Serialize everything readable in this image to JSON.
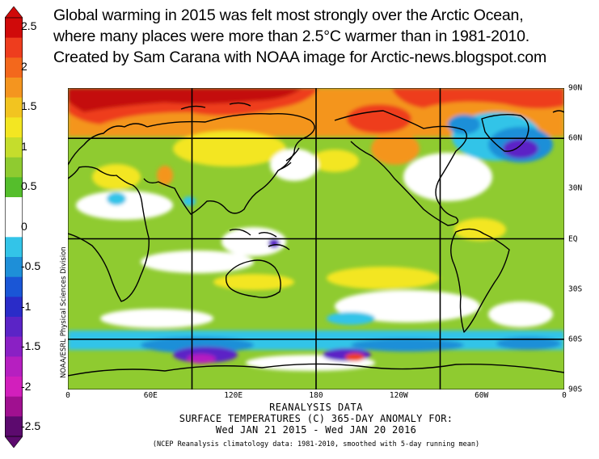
{
  "title_lines": [
    "Global warming in 2015 was felt most strongly over the Arctic Ocean,",
    "where many places were more than 2.5°C warmer than in 1981-2010.",
    "Created by Sam Carana with NOAA image for Arctic-news.blogspot.com"
  ],
  "colorbar": {
    "labels": [
      "2.5",
      "2",
      "1.5",
      "1",
      "0.5",
      "0",
      "-0.5",
      "-1",
      "-1.5",
      "-2",
      "-2.5"
    ],
    "colors": [
      "#d00a0a",
      "#ee3d1e",
      "#f3681c",
      "#f4951f",
      "#f2c420",
      "#f3e622",
      "#c5dd2c",
      "#8fcb30",
      "#55be2c",
      "#ffffff",
      "#ffffff",
      "#33c4e8",
      "#1e8fd8",
      "#1a56d6",
      "#2a2cc8",
      "#5b24c6",
      "#8a20c4",
      "#b61fc0",
      "#d21fbc",
      "#a01090",
      "#5c0a6e"
    ]
  },
  "axes": {
    "lon_labels": [
      "0",
      "60E",
      "120E",
      "180",
      "120W",
      "60W",
      "0"
    ],
    "lat_labels": [
      "90N",
      "60N",
      "30N",
      "EQ",
      "30S",
      "60S",
      "90S"
    ]
  },
  "map_colors": {
    "green": "#8fcb30",
    "light_green": "#c5dd2c",
    "yellow": "#f3e622",
    "orange": "#f4951f",
    "red": "#ee3d1e",
    "dark_red": "#c40a0a",
    "white": "#ffffff",
    "cyan": "#33c4e8",
    "blue": "#1e8fd8",
    "purple": "#5b24c6",
    "magenta": "#b61fc0",
    "coast": "#000000"
  },
  "credit": "NOAA/ESRL Physical Sciences Division",
  "caption": {
    "line1": "REANALYSIS DATA",
    "line2": "SURFACE TEMPERATURES (C)   365-DAY ANOMALY FOR:",
    "line3": "Wed JAN 21 2015 - Wed JAN 20 2016",
    "note": "(NCEP Reanalysis climatology data: 1981-2010, smoothed with 5-day running mean)"
  }
}
